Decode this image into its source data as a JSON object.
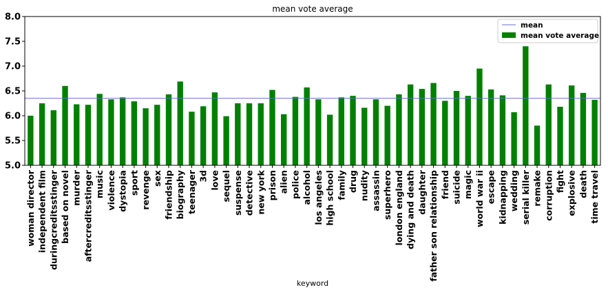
{
  "chart_data": {
    "type": "bar",
    "title": "mean vote average",
    "xlabel": "keyword",
    "ylabel": "",
    "ylim": [
      5.0,
      8.0
    ],
    "yticks": [
      "5.0",
      "5.5",
      "6.0",
      "6.5",
      "7.0",
      "7.5",
      "8.0"
    ],
    "categories": [
      "woman director",
      "independent film",
      "duringcreditsstinger",
      "based on novel",
      "murder",
      "aftercreditsstinger",
      "music",
      "violence",
      "dystopia",
      "sport",
      "revenge",
      "sex",
      "friendship",
      "biography",
      "teenager",
      "3d",
      "love",
      "sequel",
      "suspense",
      "detective",
      "new york",
      "prison",
      "alien",
      "police",
      "alcohol",
      "los angeles",
      "high school",
      "family",
      "drug",
      "nudity",
      "assassin",
      "superhero",
      "london england",
      "dying and death",
      "daughter",
      "father son relationship",
      "friend",
      "suicide",
      "magic",
      "world war ii",
      "escape",
      "kidnapping",
      "wedding",
      "serial killer",
      "remake",
      "corruption",
      "fight",
      "explosive",
      "death",
      "time travel"
    ],
    "series": [
      {
        "name": "mean vote average",
        "color": "#008000",
        "values": [
          6.0,
          6.25,
          6.11,
          6.6,
          6.23,
          6.22,
          6.44,
          6.33,
          6.37,
          6.29,
          6.15,
          6.22,
          6.43,
          6.69,
          6.08,
          6.19,
          6.47,
          5.99,
          6.25,
          6.25,
          6.25,
          6.52,
          6.03,
          6.38,
          6.57,
          6.33,
          6.02,
          6.37,
          6.4,
          6.16,
          6.33,
          6.2,
          6.43,
          6.63,
          6.54,
          6.66,
          6.3,
          6.5,
          6.4,
          6.95,
          6.53,
          6.41,
          6.07,
          7.4,
          5.8,
          6.63,
          6.18,
          6.61,
          6.46,
          6.32
        ]
      }
    ],
    "mean_line": {
      "name": "mean",
      "value": 6.35,
      "color": "#6b6bcf"
    },
    "legend_position": "top-right",
    "grid": false
  }
}
